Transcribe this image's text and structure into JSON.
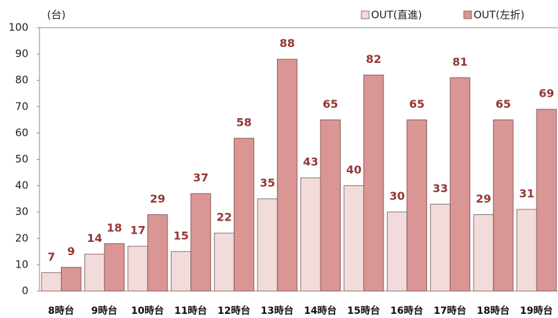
{
  "chart_data": {
    "type": "bar",
    "unit_label": "(台)",
    "categories": [
      "8時台",
      "9時台",
      "10時台",
      "11時台",
      "12時台",
      "13時台",
      "14時台",
      "15時台",
      "16時台",
      "17時台",
      "18時台",
      "19時台"
    ],
    "series": [
      {
        "name": "OUT(直進)",
        "color": "#f2dcdb",
        "values": [
          7,
          14,
          17,
          15,
          22,
          35,
          43,
          40,
          30,
          33,
          29,
          31
        ]
      },
      {
        "name": "OUT(左折)",
        "color": "#d99694",
        "values": [
          9,
          18,
          29,
          37,
          58,
          88,
          65,
          82,
          65,
          81,
          65,
          69
        ]
      }
    ],
    "ylim": [
      0,
      100
    ],
    "yticks": [
      0,
      10,
      20,
      30,
      40,
      50,
      60,
      70,
      80,
      90,
      100
    ],
    "grid": false,
    "legend": "top-right"
  }
}
